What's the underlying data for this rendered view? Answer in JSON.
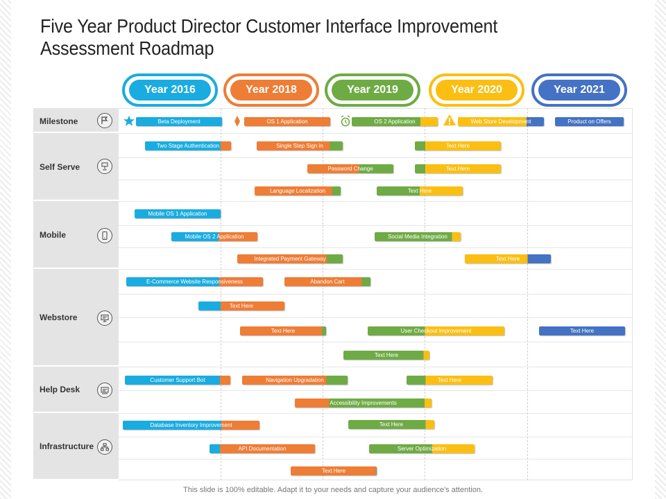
{
  "title": "Five Year Product Director Customer Interface Improvement Assessment Roadmap",
  "footer": "This slide is 100% editable. Adapt it to your needs and capture your audience's attention.",
  "colors": {
    "blue": "#1aace0",
    "orange": "#ee7d36",
    "green": "#6fab45",
    "yellow": "#fbbf13",
    "navy": "#4472c4"
  },
  "years": [
    {
      "label": "Year 2016",
      "color": "#1aace0"
    },
    {
      "label": "Year 2018",
      "color": "#ee7d36"
    },
    {
      "label": "Year 2019",
      "color": "#6fab45"
    },
    {
      "label": "Year 2020",
      "color": "#fbbf13"
    },
    {
      "label": "Year 2021",
      "color": "#4472c4"
    }
  ],
  "categories": [
    {
      "label": "Milestone",
      "icon": "flag-icon"
    },
    {
      "label": "Self Serve",
      "icon": "kiosk-icon"
    },
    {
      "label": "Mobile",
      "icon": "mobile-phone-icon"
    },
    {
      "label": "Webstore",
      "icon": "monitor-store-icon"
    },
    {
      "label": "Help Desk",
      "icon": "help-desk-icon"
    },
    {
      "label": "Infrastructure",
      "icon": "network-icon"
    }
  ],
  "milestone_markers": [
    {
      "icon": "star-icon",
      "color": "#1aace0"
    },
    {
      "icon": "diamond-icon",
      "color": "#ee7d36"
    },
    {
      "icon": "alarm-clock-icon",
      "color": "#6fab45"
    },
    {
      "icon": "warning-icon",
      "color": "#fbbf13"
    }
  ],
  "tasks": [
    {
      "label": "Beta Deployment"
    },
    {
      "label": "OS 1 Application"
    },
    {
      "label": "OS 2 Application"
    },
    {
      "label": "Web Store Development"
    },
    {
      "label": "Product on Offers"
    },
    {
      "label": "Two Stage Authentication"
    },
    {
      "label": "Single Step Sign in"
    },
    {
      "label": "Text Here"
    },
    {
      "label": "Password  Change"
    },
    {
      "label": "Text Here"
    },
    {
      "label": "Language Localization"
    },
    {
      "label": "Text Here"
    },
    {
      "label": "Mobile OS 1 Application"
    },
    {
      "label": "Mobile OS 2 Application"
    },
    {
      "label": "Social  Media Integration"
    },
    {
      "label": "Integrated Payment  Gateway"
    },
    {
      "label": "Text Here"
    },
    {
      "label": "E-Commerce  Website Responsiveness"
    },
    {
      "label": "Abandon Cart"
    },
    {
      "label": "Text Here"
    },
    {
      "label": "Text Here"
    },
    {
      "label": "User Checkout Improvement"
    },
    {
      "label": "Text Here"
    },
    {
      "label": "Text Here"
    },
    {
      "label": "Customer  Support Bot"
    },
    {
      "label": "Navigation Upgradation"
    },
    {
      "label": "Text Here"
    },
    {
      "label": "Accessibility  Improvements"
    },
    {
      "label": "Database Inventory Improvement"
    },
    {
      "label": "Text Here"
    },
    {
      "label": "API  Documentation"
    },
    {
      "label": "Server Optimization"
    },
    {
      "label": "Text Here"
    }
  ]
}
